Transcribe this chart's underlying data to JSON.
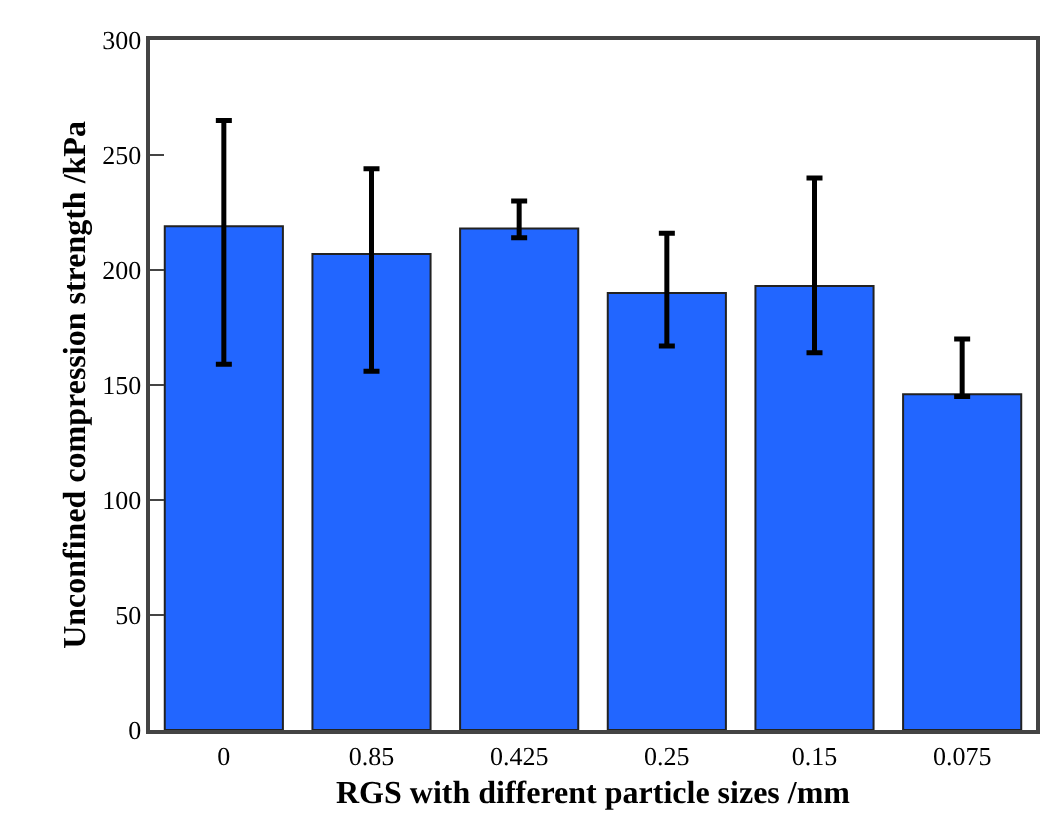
{
  "chart_data": {
    "type": "bar",
    "xlabel": "RGS with different particle sizes /mm",
    "ylabel": "Unconfined compression strength /kPa",
    "categories": [
      "0",
      "0.85",
      "0.425",
      "0.25",
      "0.15",
      "0.075"
    ],
    "values": [
      219,
      207,
      218,
      190,
      193,
      146
    ],
    "errors": [
      [
        159,
        265
      ],
      [
        156,
        244
      ],
      [
        214,
        230
      ],
      [
        167,
        216
      ],
      [
        164,
        240
      ],
      [
        145,
        170
      ]
    ],
    "color": "#2266ff",
    "ylim": [
      0,
      300
    ],
    "yticks": [
      0,
      50,
      100,
      150,
      200,
      250,
      300
    ]
  }
}
